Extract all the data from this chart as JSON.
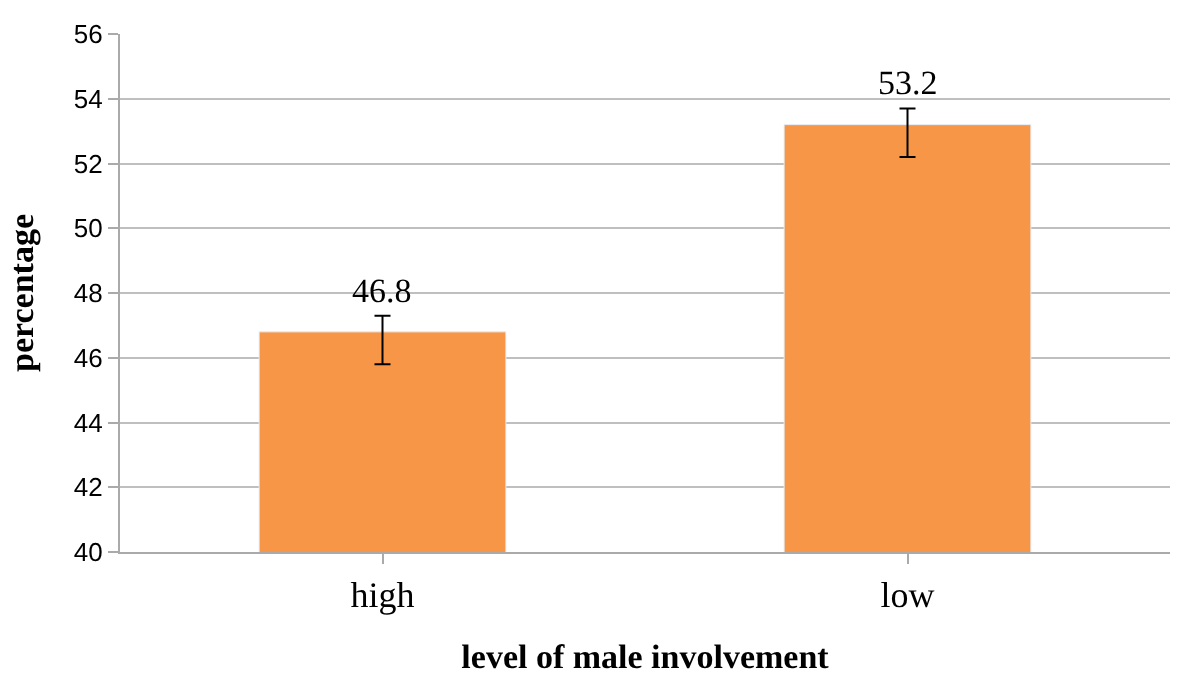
{
  "chart_data": {
    "type": "bar",
    "xlabel": "level of male involvement",
    "ylabel": "percentage",
    "categories": [
      "high",
      "low"
    ],
    "values": [
      46.8,
      53.2
    ],
    "color": "#f79646",
    "errors": [
      [
        45.8,
        47.3
      ],
      [
        52.2,
        53.7
      ]
    ],
    "data_labels": true,
    "ylim": [
      40,
      56
    ],
    "yticks": [
      40,
      42,
      44,
      46,
      48,
      50,
      52,
      54,
      56
    ],
    "grid": "y",
    "legend": false
  }
}
